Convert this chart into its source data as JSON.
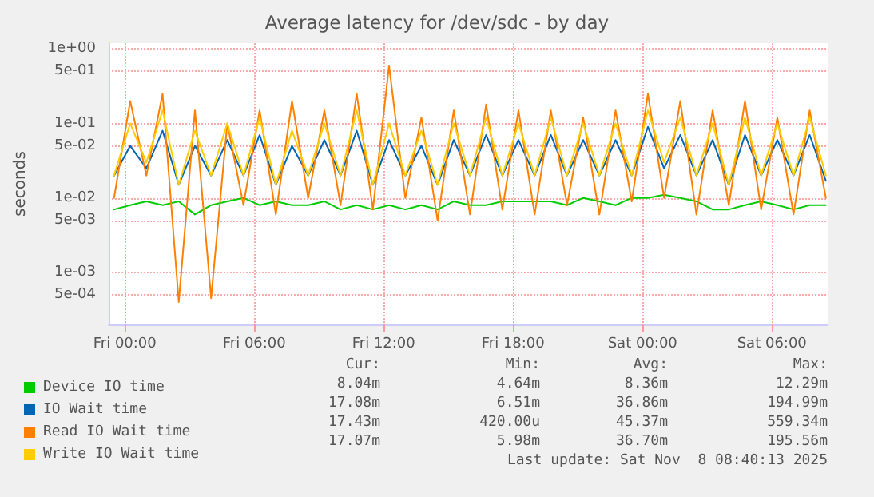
{
  "chart_data": {
    "type": "line",
    "title": "Average latency for /dev/sdc - by day",
    "ylabel": "seconds",
    "log": "y",
    "grid": true,
    "legend": "bottom left",
    "marker": "none",
    "line_style": "solid",
    "xlim": [
      "2025-11-06T23:15",
      "2025-11-08T08:35"
    ],
    "ylim": [
      0.0002,
      1.2
    ],
    "xticks": [
      {
        "value": "2025-11-07T00:00",
        "label": "Fri 00:00"
      },
      {
        "value": "2025-11-07T06:00",
        "label": "Fri 06:00"
      },
      {
        "value": "2025-11-07T12:00",
        "label": "Fri 12:00"
      },
      {
        "value": "2025-11-07T18:00",
        "label": "Fri 18:00"
      },
      {
        "value": "2025-11-08T00:00",
        "label": "Sat 00:00"
      },
      {
        "value": "2025-11-08T06:00",
        "label": "Sat 06:00"
      }
    ],
    "yticks": [
      {
        "value": 0.0005,
        "label": "5e-04"
      },
      {
        "value": 0.001,
        "label": "1e-03"
      },
      {
        "value": 0.005,
        "label": "5e-03"
      },
      {
        "value": 0.01,
        "label": "1e-02"
      },
      {
        "value": 0.05,
        "label": "5e-02"
      },
      {
        "value": 0.1,
        "label": "1e-01"
      },
      {
        "value": 0.5,
        "label": "5e-01"
      },
      {
        "value": 1,
        "label": "1e+00"
      }
    ],
    "x": [
      "2025-11-06T23:30",
      "2025-11-07T00:15",
      "2025-11-07T01:00",
      "2025-11-07T01:45",
      "2025-11-07T02:30",
      "2025-11-07T03:15",
      "2025-11-07T04:00",
      "2025-11-07T04:45",
      "2025-11-07T05:30",
      "2025-11-07T06:15",
      "2025-11-07T07:00",
      "2025-11-07T07:45",
      "2025-11-07T08:30",
      "2025-11-07T09:15",
      "2025-11-07T10:00",
      "2025-11-07T10:45",
      "2025-11-07T11:30",
      "2025-11-07T12:15",
      "2025-11-07T13:00",
      "2025-11-07T13:45",
      "2025-11-07T14:30",
      "2025-11-07T15:15",
      "2025-11-07T16:00",
      "2025-11-07T16:45",
      "2025-11-07T17:30",
      "2025-11-07T18:15",
      "2025-11-07T19:00",
      "2025-11-07T19:45",
      "2025-11-07T20:30",
      "2025-11-07T21:15",
      "2025-11-07T22:00",
      "2025-11-07T22:45",
      "2025-11-07T23:30",
      "2025-11-08T00:15",
      "2025-11-08T01:00",
      "2025-11-08T01:45",
      "2025-11-08T02:30",
      "2025-11-08T03:15",
      "2025-11-08T04:00",
      "2025-11-08T04:45",
      "2025-11-08T05:30",
      "2025-11-08T06:15",
      "2025-11-08T07:00",
      "2025-11-08T07:45",
      "2025-11-08T08:30"
    ],
    "series": [
      {
        "name": "Device IO time",
        "color": "#00cc00",
        "values": [
          0.007,
          0.008,
          0.009,
          0.008,
          0.009,
          0.006,
          0.008,
          0.009,
          0.01,
          0.008,
          0.009,
          0.008,
          0.008,
          0.009,
          0.007,
          0.008,
          0.007,
          0.008,
          0.007,
          0.008,
          0.007,
          0.009,
          0.008,
          0.008,
          0.009,
          0.009,
          0.009,
          0.009,
          0.008,
          0.01,
          0.009,
          0.008,
          0.01,
          0.01,
          0.011,
          0.01,
          0.009,
          0.007,
          0.007,
          0.008,
          0.009,
          0.008,
          0.007,
          0.008,
          0.008
        ]
      },
      {
        "name": "IO Wait time",
        "color": "#0066b3",
        "values": [
          0.02,
          0.05,
          0.025,
          0.08,
          0.015,
          0.05,
          0.02,
          0.06,
          0.02,
          0.07,
          0.015,
          0.05,
          0.02,
          0.06,
          0.02,
          0.08,
          0.015,
          0.06,
          0.02,
          0.05,
          0.015,
          0.06,
          0.02,
          0.07,
          0.02,
          0.06,
          0.02,
          0.07,
          0.02,
          0.06,
          0.02,
          0.06,
          0.02,
          0.09,
          0.025,
          0.07,
          0.02,
          0.06,
          0.015,
          0.07,
          0.02,
          0.06,
          0.02,
          0.07,
          0.017
        ]
      },
      {
        "name": "Read IO Wait time",
        "color": "#ff8000",
        "values": [
          0.01,
          0.2,
          0.02,
          0.25,
          0.0004,
          0.15,
          0.00045,
          0.1,
          0.008,
          0.15,
          0.006,
          0.2,
          0.01,
          0.15,
          0.008,
          0.25,
          0.007,
          0.6,
          0.01,
          0.12,
          0.005,
          0.15,
          0.006,
          0.18,
          0.007,
          0.15,
          0.006,
          0.15,
          0.008,
          0.12,
          0.006,
          0.15,
          0.009,
          0.25,
          0.01,
          0.2,
          0.006,
          0.15,
          0.008,
          0.2,
          0.007,
          0.12,
          0.006,
          0.15,
          0.01
        ]
      },
      {
        "name": "Write IO Wait time",
        "color": "#ffcc00",
        "values": [
          0.02,
          0.1,
          0.03,
          0.15,
          0.015,
          0.08,
          0.02,
          0.1,
          0.02,
          0.12,
          0.015,
          0.08,
          0.02,
          0.1,
          0.02,
          0.15,
          0.015,
          0.1,
          0.02,
          0.08,
          0.015,
          0.1,
          0.02,
          0.12,
          0.02,
          0.1,
          0.02,
          0.12,
          0.02,
          0.1,
          0.02,
          0.1,
          0.02,
          0.15,
          0.03,
          0.12,
          0.02,
          0.1,
          0.015,
          0.12,
          0.02,
          0.1,
          0.02,
          0.12,
          0.02
        ]
      }
    ],
    "annotations": [
      "Cur:",
      "Min:",
      "Avg:",
      "Max:",
      "8.04m",
      "4.64m",
      "8.36m",
      "12.29m",
      "17.08m",
      "6.51m",
      "36.86m",
      "194.99m",
      "17.43m",
      "420.00u",
      "45.37m",
      "559.34m",
      "17.07m",
      "5.98m",
      "36.70m",
      "195.56m",
      "Last update: Sat Nov  8 08:40:13 2025"
    ]
  }
}
